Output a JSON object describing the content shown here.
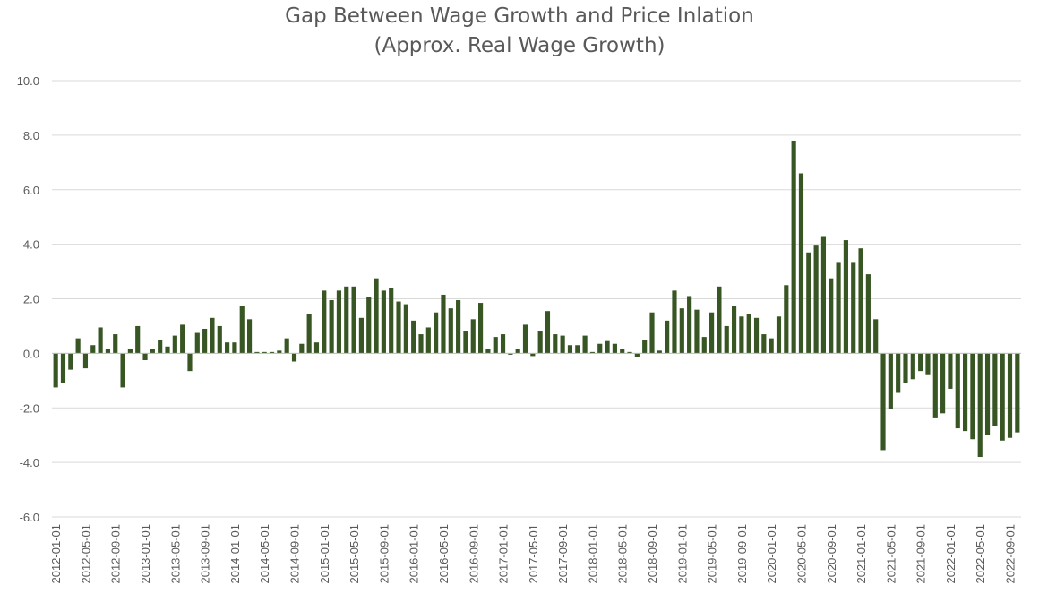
{
  "chart_data": {
    "type": "bar",
    "title": "Gap Between Wage Growth and Price Inlation",
    "subtitle": "(Approx. Real Wage Growth)",
    "xlabel": "",
    "ylabel": "",
    "ylim": [
      -6.0,
      10.0
    ],
    "yticks": [
      "10.0",
      "8.0",
      "6.0",
      "4.0",
      "2.0",
      "0.0",
      "-2.0",
      "-4.0",
      "-6.0"
    ],
    "grid": true,
    "bar_color": "#375623",
    "categories": [
      "2012-01-01",
      "2012-02-01",
      "2012-03-01",
      "2012-04-01",
      "2012-05-01",
      "2012-06-01",
      "2012-07-01",
      "2012-08-01",
      "2012-09-01",
      "2012-10-01",
      "2012-11-01",
      "2012-12-01",
      "2013-01-01",
      "2013-02-01",
      "2013-03-01",
      "2013-04-01",
      "2013-05-01",
      "2013-06-01",
      "2013-07-01",
      "2013-08-01",
      "2013-09-01",
      "2013-10-01",
      "2013-11-01",
      "2013-12-01",
      "2014-01-01",
      "2014-02-01",
      "2014-03-01",
      "2014-04-01",
      "2014-05-01",
      "2014-06-01",
      "2014-07-01",
      "2014-08-01",
      "2014-09-01",
      "2014-10-01",
      "2014-11-01",
      "2014-12-01",
      "2015-01-01",
      "2015-02-01",
      "2015-03-01",
      "2015-04-01",
      "2015-05-01",
      "2015-06-01",
      "2015-07-01",
      "2015-08-01",
      "2015-09-01",
      "2015-10-01",
      "2015-11-01",
      "2015-12-01",
      "2016-01-01",
      "2016-02-01",
      "2016-03-01",
      "2016-04-01",
      "2016-05-01",
      "2016-06-01",
      "2016-07-01",
      "2016-08-01",
      "2016-09-01",
      "2016-10-01",
      "2016-11-01",
      "2016-12-01",
      "2017-01-01",
      "2017-02-01",
      "2017-03-01",
      "2017-04-01",
      "2017-05-01",
      "2017-06-01",
      "2017-07-01",
      "2017-08-01",
      "2017-09-01",
      "2017-10-01",
      "2017-11-01",
      "2017-12-01",
      "2018-01-01",
      "2018-02-01",
      "2018-03-01",
      "2018-04-01",
      "2018-05-01",
      "2018-06-01",
      "2018-07-01",
      "2018-08-01",
      "2018-09-01",
      "2018-10-01",
      "2018-11-01",
      "2018-12-01",
      "2019-01-01",
      "2019-02-01",
      "2019-03-01",
      "2019-04-01",
      "2019-05-01",
      "2019-06-01",
      "2019-07-01",
      "2019-08-01",
      "2019-09-01",
      "2019-10-01",
      "2019-11-01",
      "2019-12-01",
      "2020-01-01",
      "2020-02-01",
      "2020-03-01",
      "2020-04-01",
      "2020-05-01",
      "2020-06-01",
      "2020-07-01",
      "2020-08-01",
      "2020-09-01",
      "2020-10-01",
      "2020-11-01",
      "2020-12-01",
      "2021-01-01",
      "2021-02-01",
      "2021-03-01",
      "2021-04-01",
      "2021-05-01",
      "2021-06-01",
      "2021-07-01",
      "2021-08-01",
      "2021-09-01",
      "2021-10-01",
      "2021-11-01",
      "2021-12-01",
      "2022-01-01",
      "2022-02-01",
      "2022-03-01",
      "2022-04-01",
      "2022-05-01",
      "2022-06-01",
      "2022-07-01",
      "2022-08-01",
      "2022-09-01",
      "2022-10-01"
    ],
    "values": [
      -1.25,
      -1.1,
      -0.6,
      0.55,
      -0.55,
      0.3,
      0.95,
      0.15,
      0.7,
      -1.25,
      0.15,
      1.0,
      -0.25,
      0.15,
      0.5,
      0.25,
      0.65,
      1.05,
      -0.65,
      0.75,
      0.9,
      1.3,
      1.0,
      0.4,
      0.4,
      1.75,
      1.25,
      0.05,
      0.05,
      0.05,
      0.1,
      0.55,
      -0.3,
      0.35,
      1.45,
      0.4,
      2.3,
      1.95,
      2.3,
      2.45,
      2.45,
      1.3,
      2.05,
      2.75,
      2.3,
      2.4,
      1.9,
      1.8,
      1.2,
      0.7,
      0.95,
      1.5,
      2.15,
      1.65,
      1.95,
      0.8,
      1.25,
      1.85,
      0.15,
      0.6,
      0.7,
      -0.05,
      0.15,
      1.05,
      -0.1,
      0.8,
      1.55,
      0.7,
      0.65,
      0.3,
      0.3,
      0.65,
      0.05,
      0.35,
      0.45,
      0.35,
      0.15,
      0.05,
      -0.15,
      0.5,
      1.5,
      0.1,
      1.2,
      2.3,
      1.65,
      2.1,
      1.6,
      0.6,
      1.5,
      2.45,
      1.0,
      1.75,
      1.35,
      1.45,
      1.3,
      0.7,
      0.55,
      1.35,
      2.5,
      7.8,
      6.6,
      3.7,
      3.95,
      4.3,
      2.75,
      3.35,
      4.15,
      3.35,
      3.85,
      2.9,
      1.25,
      -3.55,
      -2.05,
      -1.45,
      -1.1,
      -0.95,
      -0.65,
      -0.8,
      -2.35,
      -2.2,
      -1.3,
      -2.75,
      -2.85,
      -3.15,
      -3.8,
      -3.0,
      -2.65,
      -3.2,
      -3.1,
      -2.9
    ],
    "xtick_labels": [
      "2012-01-01",
      "2012-05-01",
      "2012-09-01",
      "2013-01-01",
      "2013-05-01",
      "2013-09-01",
      "2014-01-01",
      "2014-05-01",
      "2014-09-01",
      "2015-01-01",
      "2015-05-01",
      "2015-09-01",
      "2016-01-01",
      "2016-05-01",
      "2016-09-01",
      "2017-01-01",
      "2017-05-01",
      "2017-09-01",
      "2018-01-01",
      "2018-05-01",
      "2018-09-01",
      "2019-01-01",
      "2019-05-01",
      "2019-09-01",
      "2020-01-01",
      "2020-05-01",
      "2020-09-01",
      "2021-01-01",
      "2021-05-01",
      "2021-09-01",
      "2022-01-01",
      "2022-05-01",
      "2022-09-01"
    ]
  }
}
